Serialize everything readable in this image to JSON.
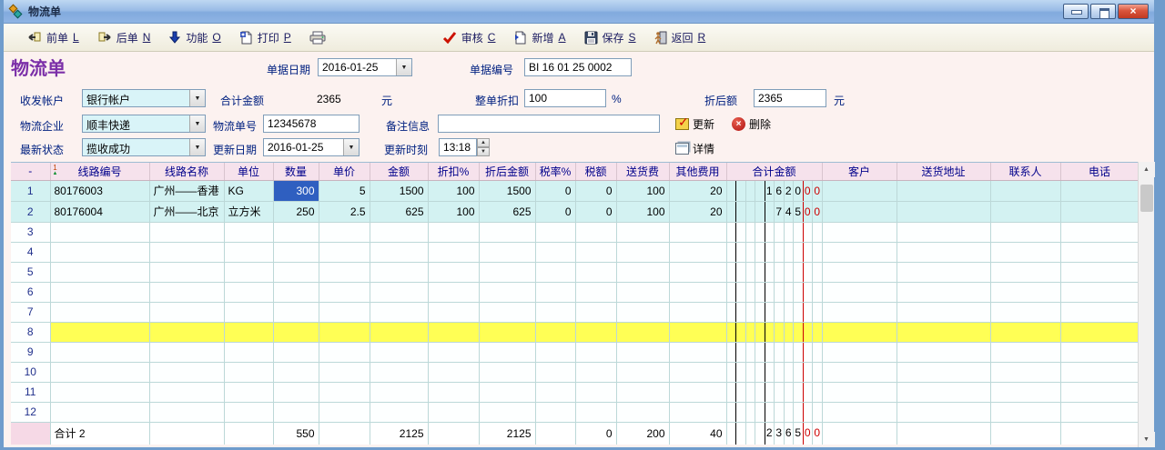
{
  "window": {
    "title": "物流单"
  },
  "toolbar": {
    "prev": {
      "label": "前单",
      "hotkey": "L"
    },
    "next": {
      "label": "后单",
      "hotkey": "N"
    },
    "func": {
      "label": "功能",
      "hotkey": "O"
    },
    "print": {
      "label": "打印",
      "hotkey": "P"
    },
    "audit": {
      "label": "审核",
      "hotkey": "C"
    },
    "new": {
      "label": "新增",
      "hotkey": "A"
    },
    "save": {
      "label": "保存",
      "hotkey": "S"
    },
    "back": {
      "label": "返回",
      "hotkey": "R"
    }
  },
  "form": {
    "title": "物流单",
    "doc_date": {
      "label": "单据日期",
      "value": "2016-01-25"
    },
    "doc_no": {
      "label": "单据编号",
      "value": "BI 16 01 25 0002"
    },
    "account": {
      "label": "收发帐户",
      "value": "银行帐户"
    },
    "total_amount": {
      "label": "合计金额",
      "value": "2365",
      "unit": "元"
    },
    "order_discount": {
      "label": "整单折扣",
      "value": "100",
      "unit": "%"
    },
    "discounted_amount": {
      "label": "折后额",
      "value": "2365",
      "unit": "元"
    },
    "logistics_company": {
      "label": "物流企业",
      "value": "顺丰快递"
    },
    "logistics_no": {
      "label": "物流单号",
      "value": "12345678"
    },
    "remark": {
      "label": "备注信息",
      "value": ""
    },
    "update_btn": "更新",
    "delete_btn": "删除",
    "latest_status": {
      "label": "最新状态",
      "value": "揽收成功"
    },
    "update_date": {
      "label": "更新日期",
      "value": "2016-01-25"
    },
    "update_time": {
      "label": "更新时刻",
      "value": "13:18"
    },
    "detail_btn": "详情"
  },
  "table": {
    "columns": [
      "-",
      "线路编号",
      "线路名称",
      "单位",
      "数量",
      "单价",
      "金额",
      "折扣%",
      "折后金额",
      "税率%",
      "税额",
      "送货费",
      "其他费用",
      "合计金额",
      "客户",
      "送货地址",
      "联系人",
      "电话"
    ],
    "rows": [
      {
        "num": "1",
        "cells": [
          "80176003",
          "广州——香港",
          "KG",
          "300",
          "5",
          "1500",
          "100",
          "1500",
          "0",
          "0",
          "100",
          "20"
        ],
        "total_digits": [
          "",
          "",
          "",
          "",
          "1",
          "6",
          "2",
          "0",
          "0",
          "0"
        ],
        "selected_col": 3
      },
      {
        "num": "2",
        "cells": [
          "80176004",
          "广州——北京",
          "立方米",
          "250",
          "2.5",
          "625",
          "100",
          "625",
          "0",
          "0",
          "100",
          "20"
        ],
        "total_digits": [
          "",
          "",
          "",
          "",
          "",
          "7",
          "4",
          "5",
          "0",
          "0"
        ]
      },
      {
        "num": "3"
      },
      {
        "num": "4"
      },
      {
        "num": "5"
      },
      {
        "num": "6"
      },
      {
        "num": "7"
      },
      {
        "num": "8",
        "highlight": true
      },
      {
        "num": "9"
      },
      {
        "num": "10"
      },
      {
        "num": "11"
      },
      {
        "num": "12"
      }
    ],
    "footer": {
      "cells": [
        "合计 2",
        "",
        "",
        "550",
        "",
        "2125",
        "",
        "2125",
        "",
        "0",
        "200",
        "40"
      ],
      "total_digits": [
        "",
        "",
        "",
        "",
        "2",
        "3",
        "6",
        "5",
        "0",
        "0"
      ]
    }
  }
}
